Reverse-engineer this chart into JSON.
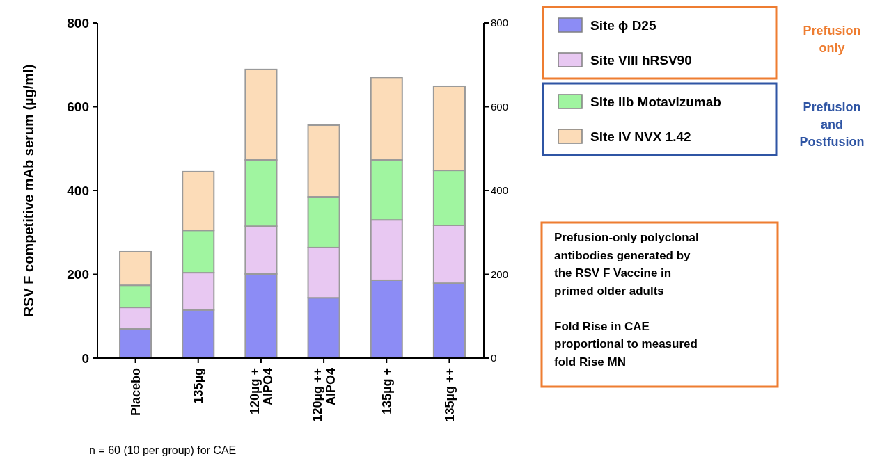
{
  "chart_data": {
    "type": "bar",
    "stacked": true,
    "ylabel": "RSV F competitive mAb serum (µg/ml)",
    "categories": [
      "Placebo",
      "135µg",
      "120µg + AlPO4",
      "120µg ++ AlPO4",
      "135µg +",
      "135µg ++"
    ],
    "series": [
      {
        "name": "Site ϕ D25",
        "color": "#8c8cf5",
        "values": [
          70,
          115,
          201,
          144,
          186,
          179
        ]
      },
      {
        "name": "Site VIII hRSV90",
        "color": "#e8c8f2",
        "values": [
          51,
          89,
          114,
          120,
          144,
          138
        ]
      },
      {
        "name": "Site IIb Motavizumab",
        "color": "#a0f5a0",
        "values": [
          53,
          101,
          158,
          121,
          143,
          131
        ]
      },
      {
        "name": "Site IV NVX 1.42",
        "color": "#fcdcb8",
        "values": [
          80,
          140,
          216,
          171,
          197,
          201
        ]
      }
    ],
    "ylim": [
      0,
      800
    ],
    "yticks": [
      0,
      200,
      400,
      600,
      800
    ],
    "y2lim": [
      0,
      800
    ],
    "y2ticks": [
      0,
      200,
      400,
      600,
      800
    ],
    "legend": "top right",
    "annotations": [
      "Prefusion only",
      "Prefusion and Postfusion",
      "Prefusion-only polyclonal antibodies generated by the RSV F Vaccine in primed older adults",
      "Fold Rise in CAE proportional to measured fold Rise MN",
      "n = 60 (10 per group) for CAE"
    ]
  }
}
